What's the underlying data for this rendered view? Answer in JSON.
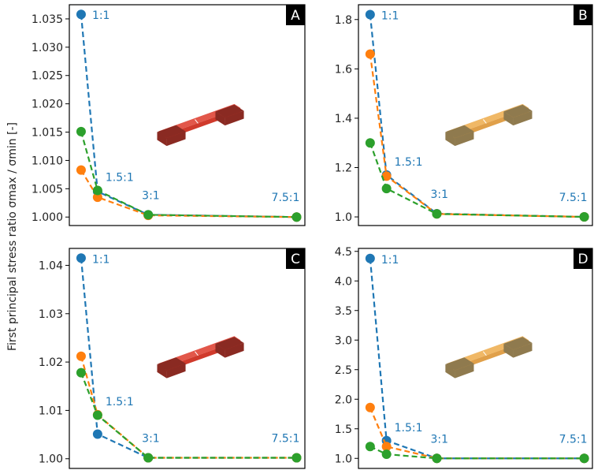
{
  "figure": {
    "ylabel": "First principal stress ratio σmax / σmin [-]"
  },
  "colors": {
    "blue": "#1f77b4",
    "orange": "#ff7f0e",
    "green": "#2ca02c",
    "red_specimen": "#d03a2c",
    "tan_specimen": "#e0a04a"
  },
  "chart_data": [
    {
      "type": "line",
      "panel": "A",
      "x": [
        1,
        1.5,
        3,
        7.5
      ],
      "ratio_labels": [
        "1:1",
        "1.5:1",
        "3:1",
        "7.5:1"
      ],
      "series": [
        {
          "color": "blue",
          "values": [
            1.0358,
            1.0045,
            1.0004,
            1.0
          ]
        },
        {
          "color": "orange",
          "values": [
            1.0083,
            1.0035,
            1.0003,
            1.0
          ]
        },
        {
          "color": "green",
          "values": [
            1.0151,
            1.0047,
            1.0004,
            1.0
          ]
        }
      ],
      "ylim": [
        0.9985,
        1.0375
      ],
      "yticks": [
        "1.000",
        "1.005",
        "1.010",
        "1.015",
        "1.020",
        "1.025",
        "1.030",
        "1.035"
      ],
      "specimen": "red"
    },
    {
      "type": "line",
      "panel": "B",
      "x": [
        1,
        1.5,
        3,
        7.5
      ],
      "ratio_labels": [
        "1:1",
        "1.5:1",
        "3:1",
        "7.5:1"
      ],
      "series": [
        {
          "color": "blue",
          "values": [
            1.82,
            1.17,
            1.013,
            1.0
          ]
        },
        {
          "color": "orange",
          "values": [
            1.66,
            1.165,
            1.012,
            1.0
          ]
        },
        {
          "color": "green",
          "values": [
            1.3,
            1.115,
            1.012,
            1.0
          ]
        }
      ],
      "ylim": [
        0.965,
        1.86
      ],
      "yticks": [
        "1.0",
        "1.2",
        "1.4",
        "1.6",
        "1.8"
      ],
      "specimen": "tan"
    },
    {
      "type": "line",
      "panel": "C",
      "x": [
        1,
        1.5,
        3,
        7.5
      ],
      "ratio_labels": [
        "1:1",
        "1.5:1",
        "3:1",
        "7.5:1"
      ],
      "series": [
        {
          "color": "blue",
          "values": [
            1.0415,
            1.0051,
            1.0002,
            1.0002
          ]
        },
        {
          "color": "orange",
          "values": [
            1.0212,
            1.0091,
            1.0002,
            1.0002
          ]
        },
        {
          "color": "green",
          "values": [
            1.0178,
            1.009,
            1.0002,
            1.0002
          ]
        }
      ],
      "ylim": [
        0.998,
        1.0435
      ],
      "yticks": [
        "1.00",
        "1.01",
        "1.02",
        "1.03",
        "1.04"
      ],
      "specimen": "red"
    },
    {
      "type": "line",
      "panel": "D",
      "x": [
        1,
        1.5,
        3,
        7.5
      ],
      "ratio_labels": [
        "1:1",
        "1.5:1",
        "3:1",
        "7.5:1"
      ],
      "series": [
        {
          "color": "blue",
          "values": [
            4.38,
            1.3,
            1.0,
            1.0
          ]
        },
        {
          "color": "orange",
          "values": [
            1.86,
            1.2,
            1.0,
            1.0
          ]
        },
        {
          "color": "green",
          "values": [
            1.2,
            1.07,
            1.0,
            1.0
          ]
        }
      ],
      "ylim": [
        0.83,
        4.55
      ],
      "yticks": [
        "1.0",
        "1.5",
        "2.0",
        "2.5",
        "3.0",
        "3.5",
        "4.0",
        "4.5"
      ],
      "specimen": "tan"
    }
  ]
}
